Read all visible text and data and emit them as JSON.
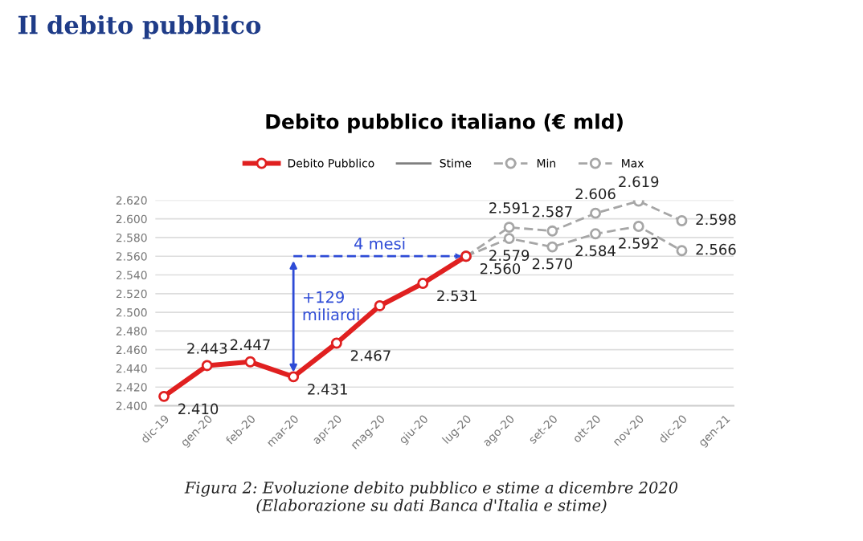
{
  "chart_data": {
    "type": "line",
    "title": "Debito pubblico italiano (€ mld)",
    "categories": [
      "dic-19",
      "gen-20",
      "feb-20",
      "mar-20",
      "apr-20",
      "mag-20",
      "giu-20",
      "lug-20",
      "ago-20",
      "set-20",
      "ott-20",
      "nov-20",
      "dic-20",
      "gen-21"
    ],
    "series": [
      {
        "name": "Debito Pubblico",
        "color": "#e02020",
        "marker": "circle",
        "line_style": "solid",
        "values": [
          2410,
          2443,
          2447,
          2431,
          2467,
          2507,
          2531,
          2560,
          null,
          null,
          null,
          null,
          null,
          null
        ],
        "value_labels": [
          "2.410",
          "2.443",
          "2.447",
          "2.431",
          "2.467",
          null,
          "2.531",
          "2.560",
          null,
          null,
          null,
          null,
          null,
          null
        ]
      },
      {
        "name": "Stime",
        "color": "#7f7f7f",
        "marker": "none",
        "line_style": "solid",
        "values": [
          null,
          null,
          null,
          null,
          null,
          null,
          null,
          null,
          null,
          null,
          null,
          null,
          null,
          null
        ]
      },
      {
        "name": "Min",
        "color": "#a6a6a6",
        "marker": "circle",
        "line_style": "dashed",
        "values": [
          null,
          null,
          null,
          null,
          null,
          null,
          null,
          2560,
          2579,
          2570,
          2584,
          2592,
          2566,
          null
        ],
        "value_labels": [
          null,
          null,
          null,
          null,
          null,
          null,
          null,
          null,
          "2.579",
          "2.570",
          "2.584",
          "2.592",
          "2.566",
          null
        ]
      },
      {
        "name": "Max",
        "color": "#a6a6a6",
        "marker": "circle",
        "line_style": "dashed",
        "values": [
          null,
          null,
          null,
          null,
          null,
          null,
          null,
          2560,
          2591,
          2587,
          2606,
          2619,
          2598,
          null
        ],
        "value_labels": [
          null,
          null,
          null,
          null,
          null,
          null,
          null,
          null,
          "2.591",
          "2.587",
          "2.606",
          "2.619",
          "2.598",
          null
        ]
      },
      {
        "type": "line",
        "color": "#2e4bd6",
        "line_style": "dashed",
        "values": [
          null,
          null,
          null,
          2560,
          2560,
          2560,
          2560,
          2560,
          null,
          null,
          null,
          null,
          null,
          null
        ]
      }
    ],
    "ylim": [
      2400,
      2620
    ],
    "yticks": [
      {
        "value": 2400,
        "label": "2.400"
      },
      {
        "value": 2420,
        "label": "2.420"
      },
      {
        "value": 2440,
        "label": "2.440"
      },
      {
        "value": 2460,
        "label": "2.460"
      },
      {
        "value": 2480,
        "label": "2.480"
      },
      {
        "value": 2500,
        "label": "2.500"
      },
      {
        "value": 2520,
        "label": "2.520"
      },
      {
        "value": 2540,
        "label": "2.540"
      },
      {
        "value": 2560,
        "label": "2.560"
      },
      {
        "value": 2580,
        "label": "2.580"
      },
      {
        "value": 2600,
        "label": "2.600"
      },
      {
        "value": 2620,
        "label": "2.620"
      }
    ],
    "grid": "y",
    "legend": "top",
    "annotations": [
      "+129\nmiliardi",
      "4 mesi",
      "Il debito pubblico",
      "Figura 2: Evoluzione debito pubblico e stime a dicembre 2020\n(Elaborazione su dati Banca d'Italia e stime)"
    ]
  }
}
